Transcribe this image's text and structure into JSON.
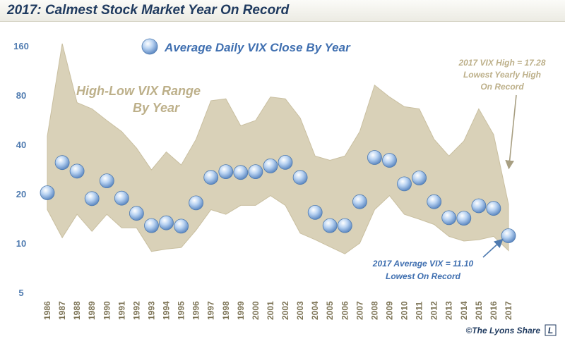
{
  "title": "2017: Calmest Stock Market Year On Record",
  "credit": "©The Lyons Share",
  "credit_logo": "L",
  "colors": {
    "band_fill": "#d9d1b8",
    "band_stroke": "#c9bfa0",
    "bubble": "#9ec1ea",
    "bubble_stroke": "#4f7bb0",
    "axis_text": "#4f7bb0",
    "year_text": "#7d7456"
  },
  "chart_data": {
    "type": "area",
    "legend": {
      "label": "Average Daily VIX Close By Year",
      "marker": "bubble"
    },
    "y_scale": "log",
    "ylim": [
      5,
      180
    ],
    "yticks": [
      5,
      10,
      20,
      40,
      80,
      160
    ],
    "x": [
      "1986",
      "1987",
      "1988",
      "1989",
      "1990",
      "1991",
      "1992",
      "1993",
      "1994",
      "1995",
      "1996",
      "1997",
      "1998",
      "1999",
      "2000",
      "2001",
      "2002",
      "2003",
      "2004",
      "2005",
      "2006",
      "2007",
      "2008",
      "2009",
      "2010",
      "2011",
      "2012",
      "2013",
      "2014",
      "2015",
      "2016",
      "2017"
    ],
    "series": [
      {
        "name": "High-Low VIX Range By Year",
        "type": "range",
        "high": [
          45,
          165,
          72,
          66,
          56,
          48,
          38,
          28,
          36,
          30,
          43,
          74,
          76,
          52,
          56,
          78,
          76,
          58,
          34,
          32,
          34,
          48,
          92,
          78,
          68,
          66,
          43,
          34,
          42,
          66,
          46,
          17.28
        ],
        "low": [
          16,
          10.8,
          15,
          11.8,
          15,
          12.4,
          12.4,
          8.9,
          9.2,
          9.4,
          12,
          16,
          15,
          17,
          17,
          19.5,
          17,
          11.5,
          10.5,
          9.5,
          8.6,
          10,
          16,
          19.5,
          15,
          14,
          13,
          11,
          10.3,
          10.5,
          11,
          9
        ]
      },
      {
        "name": "Average Daily VIX Close By Year",
        "type": "bubble",
        "values": [
          20.3,
          31,
          27.5,
          18.7,
          24,
          18.8,
          15.2,
          12.8,
          13.3,
          12.7,
          17.6,
          25.2,
          27.3,
          27,
          27.3,
          29.6,
          31.1,
          25.2,
          15.4,
          12.8,
          12.8,
          17.9,
          33.3,
          32,
          23,
          25,
          17.9,
          14.3,
          14.2,
          16.9,
          16.3,
          11.1
        ]
      }
    ],
    "labels": {
      "range": [
        "High-Low VIX Range",
        "By Year"
      ],
      "high_note": [
        "2017 VIX High = 17.28",
        "Lowest Yearly High",
        "On Record"
      ],
      "avg_note": [
        "2017 Average  VIX = 11.10",
        "Lowest On Record"
      ]
    },
    "grid": false
  }
}
